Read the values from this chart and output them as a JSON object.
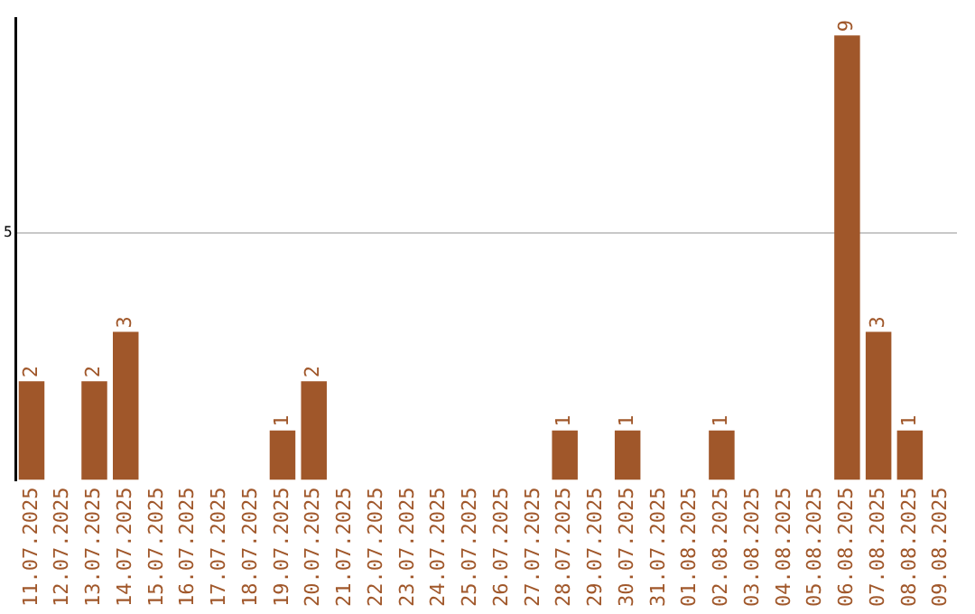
{
  "chart_data": {
    "type": "bar",
    "categories": [
      "11.07.2025",
      "12.07.2025",
      "13.07.2025",
      "14.07.2025",
      "15.07.2025",
      "16.07.2025",
      "17.07.2025",
      "18.07.2025",
      "19.07.2025",
      "20.07.2025",
      "21.07.2025",
      "22.07.2025",
      "23.07.2025",
      "24.07.2025",
      "25.07.2025",
      "26.07.2025",
      "27.07.2025",
      "28.07.2025",
      "29.07.2025",
      "30.07.2025",
      "31.07.2025",
      "01.08.2025",
      "02.08.2025",
      "03.08.2025",
      "04.08.2025",
      "05.08.2025",
      "06.08.2025",
      "07.08.2025",
      "08.08.2025",
      "09.08.2025"
    ],
    "values": [
      2,
      0,
      2,
      3,
      0,
      0,
      0,
      0,
      1,
      2,
      0,
      0,
      0,
      0,
      0,
      0,
      0,
      1,
      0,
      1,
      0,
      0,
      1,
      0,
      0,
      0,
      9,
      3,
      1,
      0
    ],
    "value_labels": [
      "2",
      null,
      "2",
      "3",
      null,
      null,
      null,
      null,
      "1",
      "2",
      null,
      null,
      null,
      null,
      null,
      null,
      null,
      "1",
      null,
      "1",
      null,
      null,
      "1",
      null,
      null,
      null,
      "9",
      "3",
      "1",
      null
    ],
    "color": "#a0572a",
    "ylim": [
      0,
      9.35
    ],
    "yticks": [
      5
    ],
    "grid": "y",
    "legend": false
  }
}
